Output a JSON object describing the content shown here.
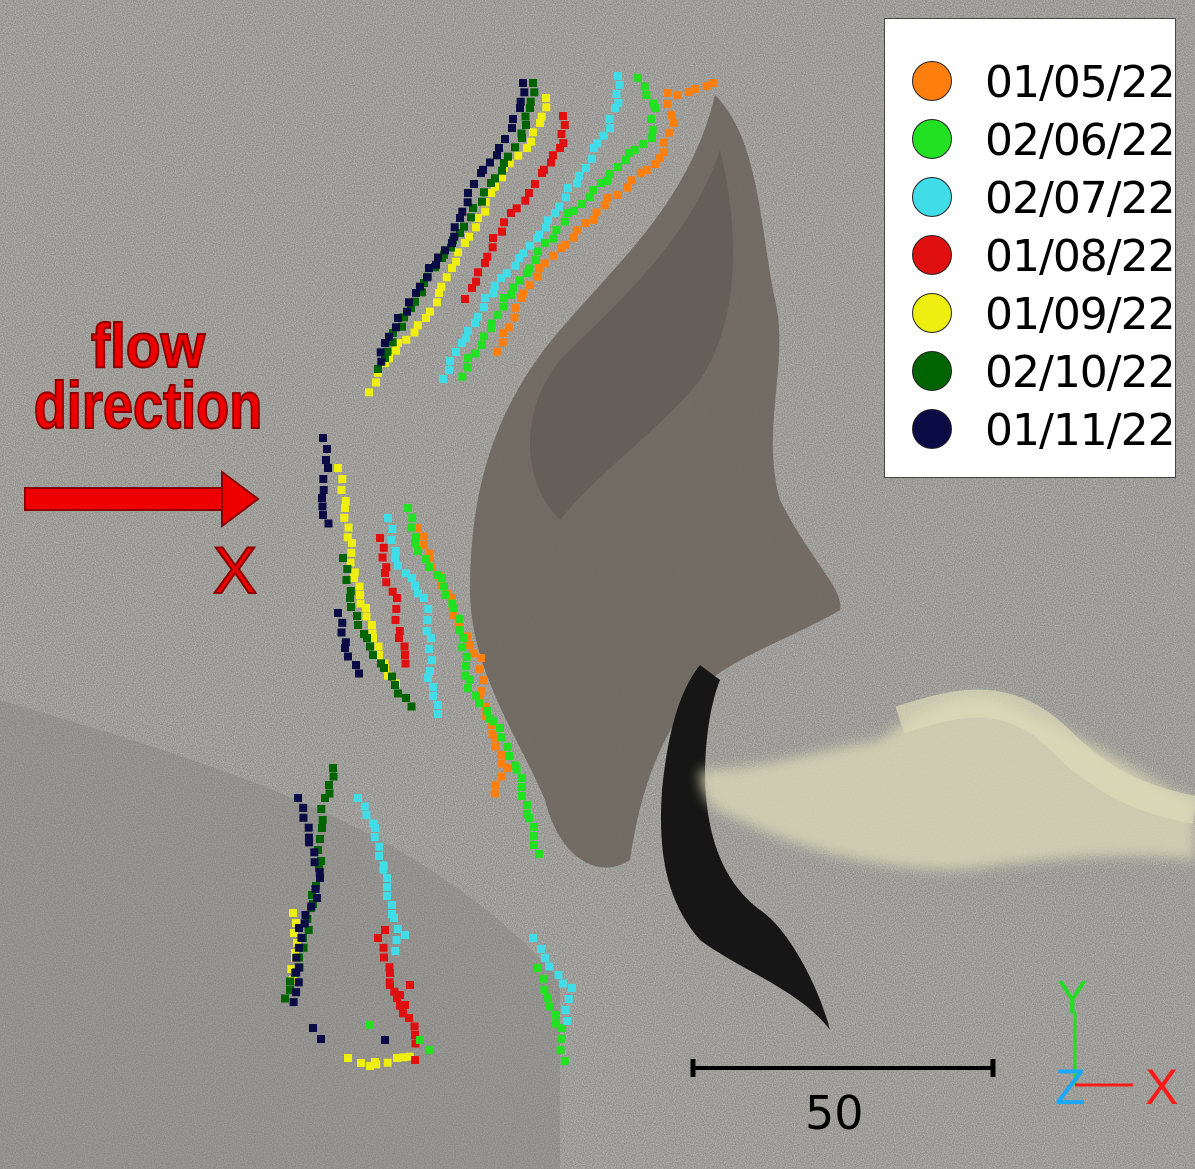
{
  "annotations": {
    "flow_line1": "flow",
    "flow_line2": "direction",
    "cross_section_marker": "X",
    "color": "#ee0000"
  },
  "legend": {
    "entries": [
      {
        "label": "01/05/22",
        "color": "#ff7f0e"
      },
      {
        "label": "02/06/22",
        "color": "#22e022"
      },
      {
        "label": "02/07/22",
        "color": "#40dde8"
      },
      {
        "label": "01/08/22",
        "color": "#e01010"
      },
      {
        "label": "01/09/22",
        "color": "#eeee10"
      },
      {
        "label": "02/10/22",
        "color": "#006400"
      },
      {
        "label": "01/11/22",
        "color": "#0a0a45"
      }
    ]
  },
  "scale_bar": {
    "label": "50"
  },
  "axes_triad": {
    "y_label": "Y",
    "z_label": "Z",
    "x_label": "X",
    "y_color": "#22dd22",
    "z_color": "#1aa8ff",
    "x_color": "#ff1a1a"
  },
  "scene_colors": {
    "gravel": "#8f8e89",
    "bank": "#6e6760",
    "water": "#161616",
    "deposit": "#d6d4b4"
  }
}
